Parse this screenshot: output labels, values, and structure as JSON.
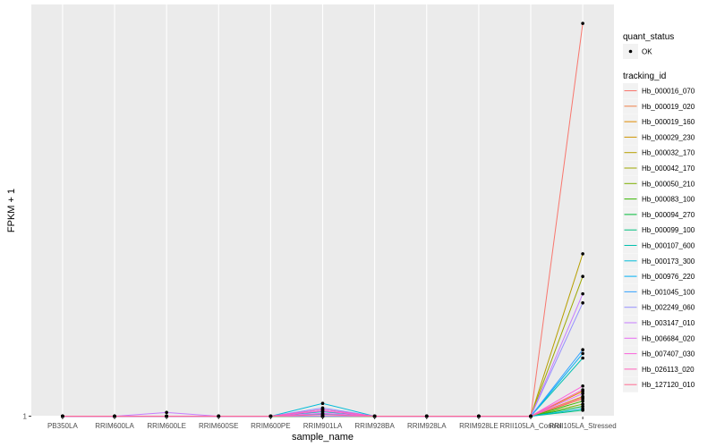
{
  "chart_data": {
    "type": "line",
    "xlabel": "sample_name",
    "ylabel": "FPKM + 1",
    "y_tick_labels": [
      "1"
    ],
    "categories": [
      "PB350LA",
      "RRIM600LA",
      "RRIM600LE",
      "RRIM600SE",
      "RRIM600PE",
      "RRIM901LA",
      "RRIM928BA",
      "RRIM928LA",
      "RRIM928LE",
      "RRII105LA_Control",
      "RRII105LA_Stressed"
    ],
    "legend_shape": {
      "title": "quant_status",
      "entries": [
        "OK"
      ]
    },
    "legend_color": {
      "title": "tracking_id",
      "placement": "right"
    },
    "grid": true,
    "series": [
      {
        "name": "Hb_000016_070",
        "color": "#F8766D",
        "values": [
          1,
          1,
          1,
          1,
          1,
          1,
          1,
          1,
          1,
          1,
          53
        ]
      },
      {
        "name": "Hb_000019_020",
        "color": "#EF7F49",
        "values": [
          1,
          1,
          1,
          1,
          1,
          1,
          1,
          1,
          1,
          1,
          3.3
        ]
      },
      {
        "name": "Hb_000019_160",
        "color": "#E08B00",
        "values": [
          1,
          1,
          1,
          1,
          1,
          1,
          1,
          1,
          1,
          1,
          4.3
        ]
      },
      {
        "name": "Hb_000029_230",
        "color": "#CF9400",
        "values": [
          1,
          1,
          1,
          1,
          1,
          1,
          1,
          1,
          1,
          1,
          3.6
        ]
      },
      {
        "name": "Hb_000032_170",
        "color": "#B79F00",
        "values": [
          1,
          1,
          1,
          1,
          1,
          1,
          1,
          1,
          1,
          1,
          22.5
        ]
      },
      {
        "name": "Hb_000042_170",
        "color": "#9DA700",
        "values": [
          1,
          1,
          1,
          1,
          1,
          1,
          1,
          1,
          1,
          1,
          19.5
        ]
      },
      {
        "name": "Hb_000050_210",
        "color": "#7CAE00",
        "values": [
          1,
          1,
          1,
          1,
          1,
          1,
          1,
          1,
          1,
          1,
          2.6
        ]
      },
      {
        "name": "Hb_000083_100",
        "color": "#39B600",
        "values": [
          1,
          1,
          1,
          1,
          1,
          1,
          1,
          1,
          1,
          1,
          3.0
        ]
      },
      {
        "name": "Hb_000094_270",
        "color": "#00BA38",
        "values": [
          1,
          1,
          1,
          1,
          1,
          1,
          1,
          1,
          1,
          1,
          2.3
        ]
      },
      {
        "name": "Hb_000099_100",
        "color": "#00BF7D",
        "values": [
          1,
          1,
          1,
          1,
          1,
          1,
          1,
          1,
          1,
          1,
          1.8
        ]
      },
      {
        "name": "Hb_000107_600",
        "color": "#00C0AF",
        "values": [
          1,
          1,
          1,
          1,
          1,
          1.6,
          1,
          1,
          1,
          1,
          8.7
        ]
      },
      {
        "name": "Hb_000173_300",
        "color": "#00BCD8",
        "values": [
          1,
          1,
          1,
          1,
          1,
          2.7,
          1,
          1,
          1,
          1,
          2.0
        ]
      },
      {
        "name": "Hb_000976_220",
        "color": "#00B0F6",
        "values": [
          1,
          1,
          1,
          1,
          1,
          1.3,
          1,
          1,
          1,
          1,
          9.3
        ]
      },
      {
        "name": "Hb_001045_100",
        "color": "#35A2FF",
        "values": [
          1,
          1,
          1,
          1,
          1,
          1.9,
          1,
          1,
          1,
          1,
          9.8
        ]
      },
      {
        "name": "Hb_002249_060",
        "color": "#9590FF",
        "values": [
          1,
          1,
          1,
          1,
          1,
          2.1,
          1,
          1,
          1,
          1,
          16.0
        ]
      },
      {
        "name": "Hb_003147_010",
        "color": "#C77CFF",
        "values": [
          1,
          1,
          1.5,
          1,
          1,
          1,
          1,
          1,
          1,
          1,
          17.2
        ]
      },
      {
        "name": "Hb_006684_020",
        "color": "#E76BF3",
        "values": [
          1,
          1,
          1,
          1,
          1,
          1.4,
          1,
          1,
          1,
          1,
          4.0
        ]
      },
      {
        "name": "Hb_007407_030",
        "color": "#FA62DB",
        "values": [
          1,
          1,
          1,
          1,
          1,
          1.7,
          1,
          1,
          1,
          1,
          5.0
        ]
      },
      {
        "name": "Hb_026113_020",
        "color": "#FF62BC",
        "values": [
          1,
          1,
          1,
          1,
          1,
          1.9,
          1,
          1,
          1,
          1,
          4.5
        ]
      },
      {
        "name": "Hb_127120_010",
        "color": "#FF6C91",
        "values": [
          1,
          1,
          1,
          1,
          1,
          1.2,
          1,
          1,
          1,
          1,
          3.5
        ]
      }
    ]
  }
}
